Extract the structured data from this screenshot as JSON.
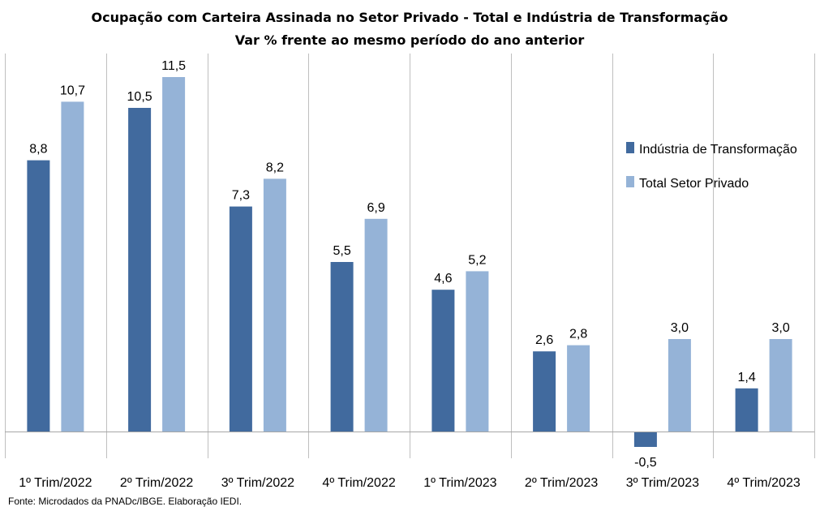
{
  "chart_data": {
    "type": "bar",
    "title": "Ocupação com Carteira Assinada no Setor Privado - Total e Indústria de Transformação",
    "subtitle": "Var % frente ao mesmo período do ano anterior",
    "categories": [
      "1º Trim/2022",
      "2º Trim/2022",
      "3º Trim/2022",
      "4º Trim/2022",
      "1º Trim/2023",
      "2º Trim/2023",
      "3º Trim/2023",
      "4º Trim/2023"
    ],
    "series": [
      {
        "name": "Indústria de Transformação",
        "color": "#416a9e",
        "values": [
          8.8,
          10.5,
          7.3,
          5.5,
          4.6,
          2.6,
          -0.5,
          1.4
        ],
        "labels": [
          "8,8",
          "10,5",
          "7,3",
          "5,5",
          "4,6",
          "2,6",
          "-0,5",
          "1,4"
        ]
      },
      {
        "name": "Total Setor Privado",
        "color": "#95b3d7",
        "values": [
          10.7,
          11.5,
          8.2,
          6.9,
          5.2,
          2.8,
          3.0,
          3.0
        ],
        "labels": [
          "10,7",
          "11,5",
          "8,2",
          "6,9",
          "5,2",
          "2,8",
          "3,0",
          "3,0"
        ]
      }
    ],
    "legend_position": "right",
    "grid": "vertical-category-separators",
    "source": "Fonte: Microdados da PNADc/IBGE. Elaboração IEDI."
  }
}
